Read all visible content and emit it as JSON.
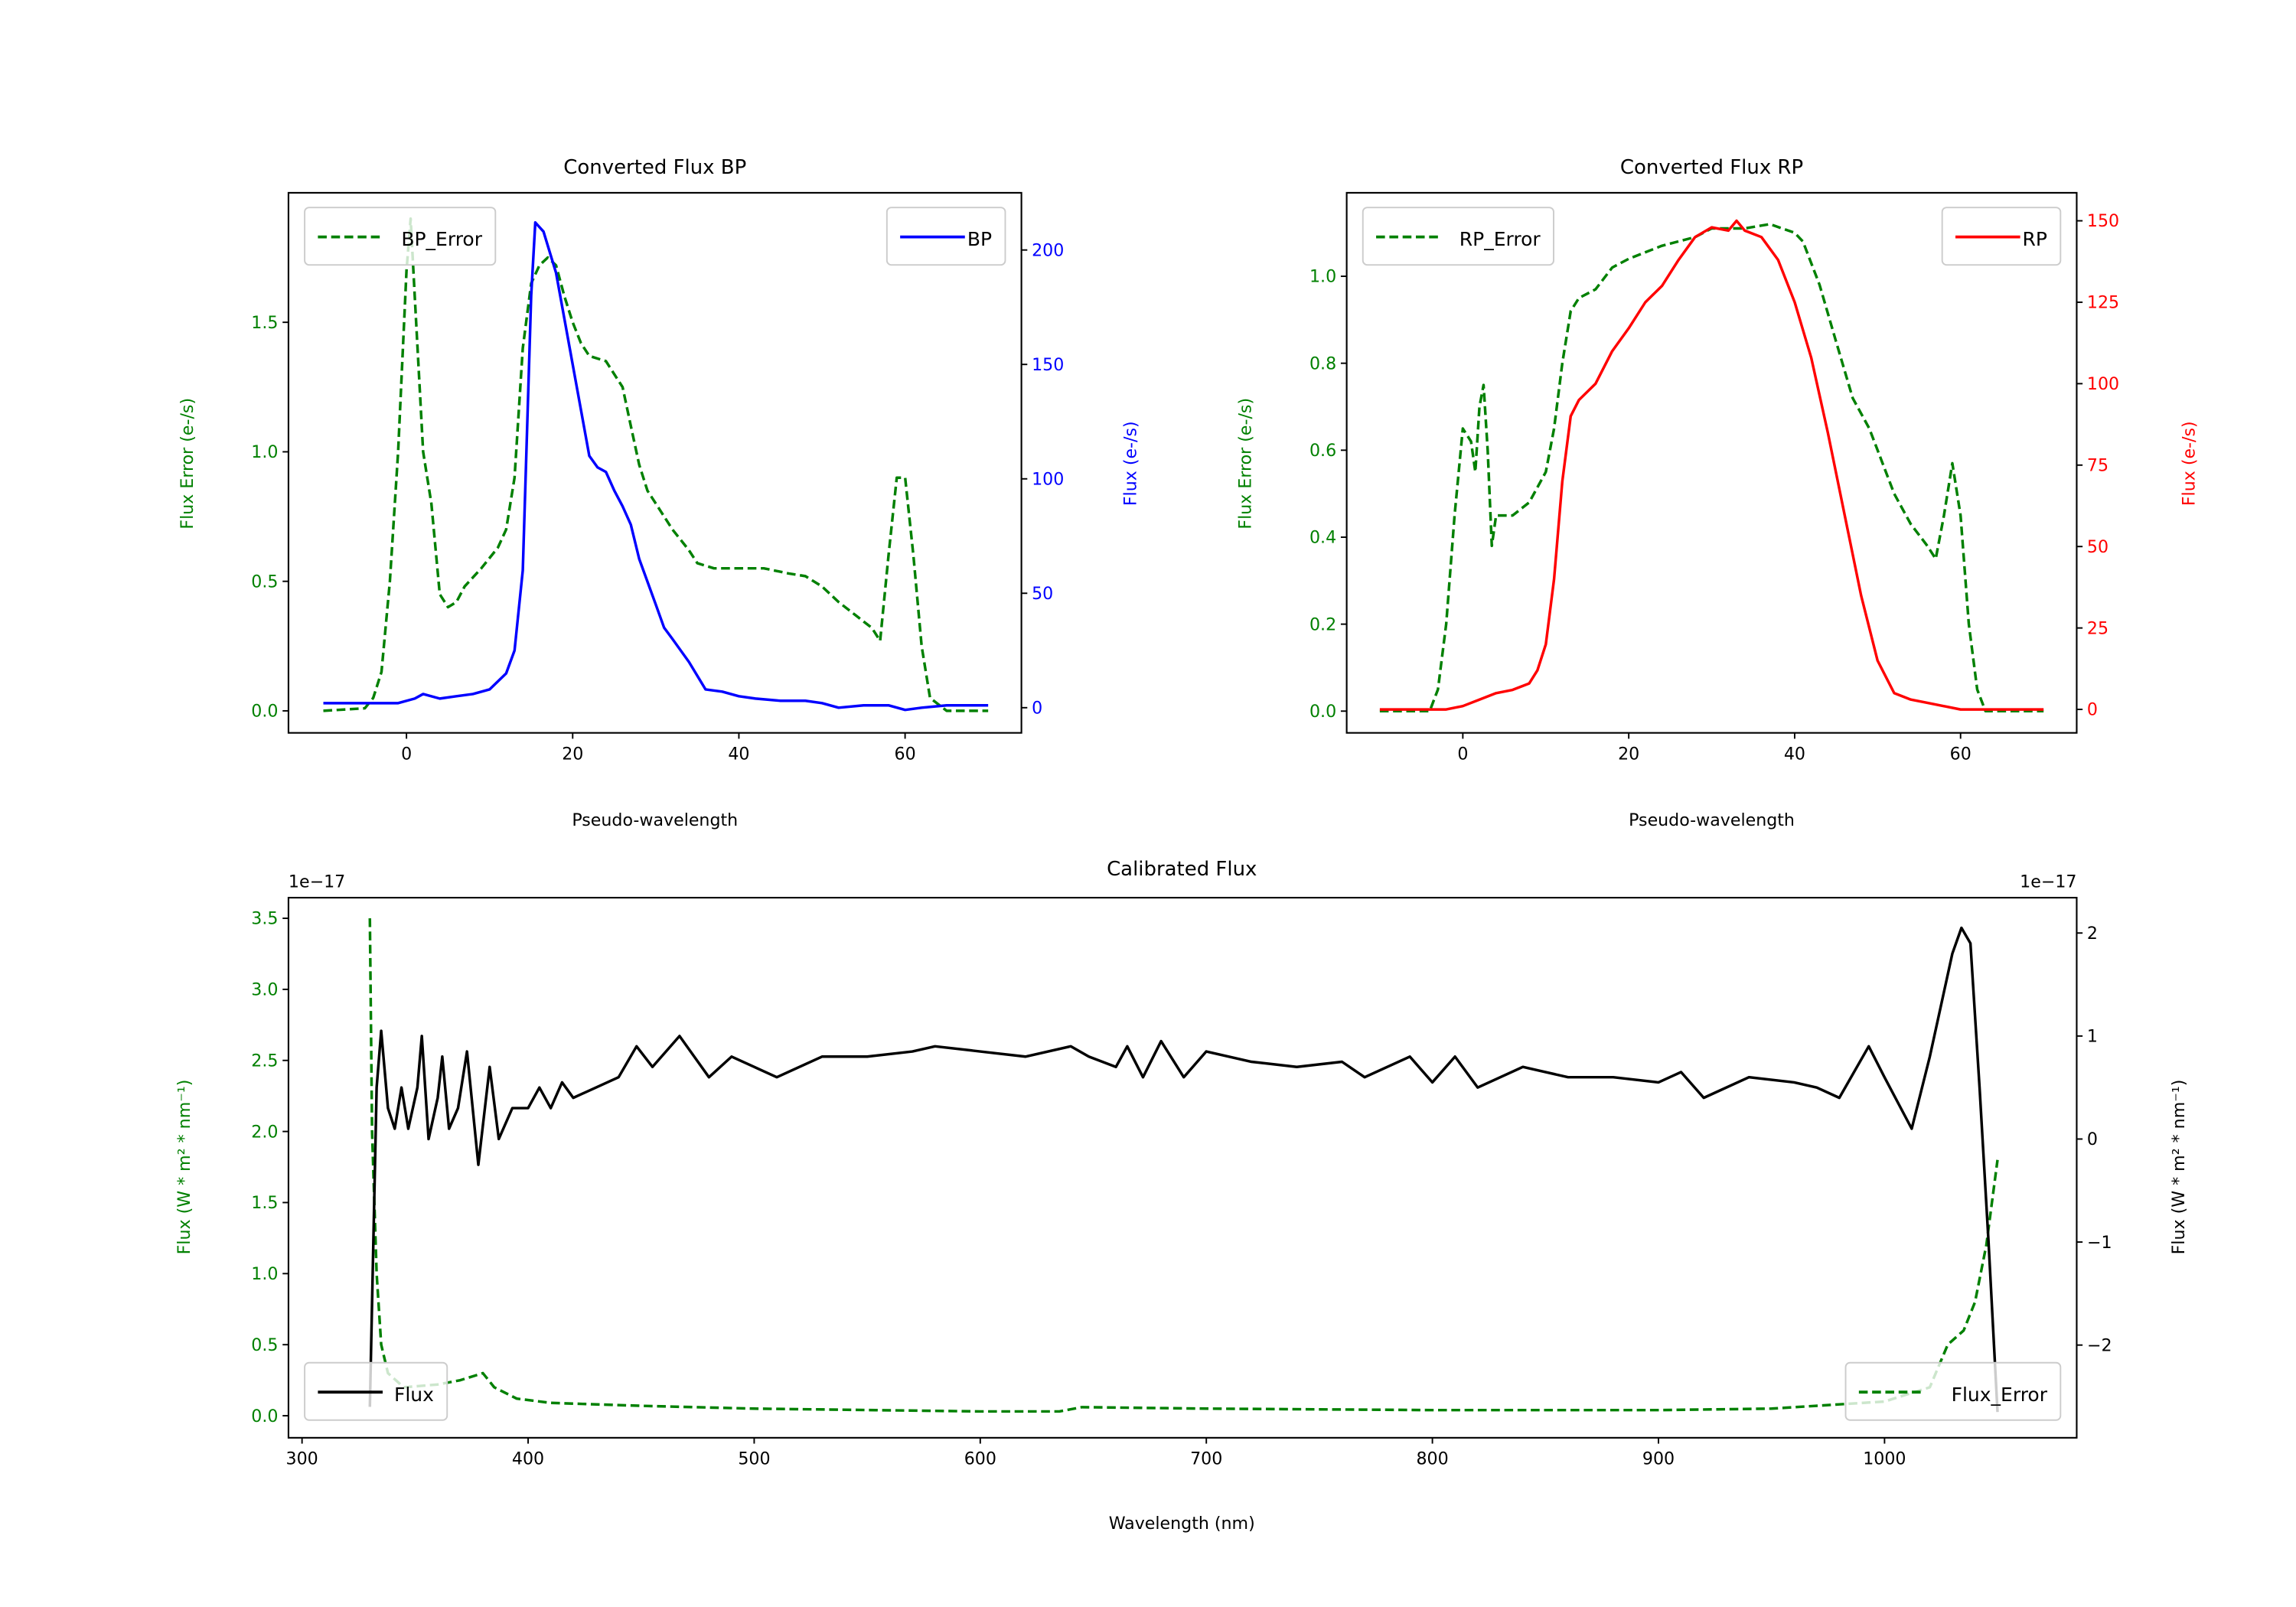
{
  "chart_data": [
    {
      "type": "line",
      "title": "Converted Flux BP",
      "xlabel": "Pseudo-wavelength",
      "ylabel_left": "Flux Error (e-/s)",
      "ylabel_right": "Flux (e-/s)",
      "xlim": [
        -14.2,
        74
      ],
      "ylim_left": [
        -0.085,
        2.0
      ],
      "ylim_right": [
        -11,
        225
      ],
      "xticks": [
        0,
        20,
        40,
        60
      ],
      "yticks_left": [
        0.0,
        0.5,
        1.0,
        1.5
      ],
      "yticks_left_labels": [
        "0.0",
        "0.5",
        "1.0",
        "1.5"
      ],
      "yticks_right": [
        0,
        50,
        100,
        150,
        200
      ],
      "left_color": "#008000",
      "right_color": "#0000ff",
      "legend_left": {
        "label": "BP_Error",
        "placement": "upper-left"
      },
      "legend_right": {
        "label": "BP",
        "placement": "upper-right"
      },
      "series": [
        {
          "name": "BP_Error",
          "axis": "left",
          "style": "dashed",
          "color": "#008000",
          "x": [
            -10,
            -5,
            -4,
            -3,
            -2,
            -1,
            0,
            0.5,
            1,
            2,
            3,
            4,
            5,
            6,
            7,
            9,
            11,
            12,
            13,
            14,
            15,
            16,
            17,
            18,
            19,
            20,
            21,
            22,
            24,
            25,
            26,
            27,
            28,
            29,
            30,
            32,
            34,
            35,
            37,
            40,
            43,
            46,
            48,
            50,
            52,
            54,
            56,
            57,
            58,
            59,
            60,
            61,
            62,
            63,
            65,
            70
          ],
          "y": [
            0,
            0.01,
            0.05,
            0.15,
            0.5,
            1.0,
            1.7,
            1.9,
            1.6,
            1.0,
            0.8,
            0.45,
            0.4,
            0.42,
            0.48,
            0.55,
            0.63,
            0.7,
            0.9,
            1.4,
            1.65,
            1.72,
            1.75,
            1.72,
            1.6,
            1.5,
            1.42,
            1.37,
            1.35,
            1.3,
            1.25,
            1.1,
            0.95,
            0.85,
            0.8,
            0.7,
            0.62,
            0.57,
            0.55,
            0.55,
            0.55,
            0.53,
            0.52,
            0.48,
            0.42,
            0.37,
            0.32,
            0.27,
            0.6,
            0.9,
            0.9,
            0.6,
            0.25,
            0.05,
            0,
            0
          ]
        },
        {
          "name": "BP",
          "axis": "right",
          "style": "solid",
          "color": "#0000ff",
          "x": [
            -10,
            -5,
            -1,
            1,
            2,
            4,
            6,
            8,
            10,
            12,
            13,
            14,
            15,
            15.5,
            16.5,
            18,
            20,
            22,
            23,
            24,
            25,
            26,
            27,
            28,
            30,
            31,
            32,
            34,
            36,
            38,
            40,
            42,
            45,
            48,
            50,
            52,
            55,
            58,
            60,
            62,
            65,
            70
          ],
          "y": [
            2,
            2,
            2,
            4,
            6,
            4,
            5,
            6,
            8,
            15,
            25,
            60,
            180,
            212,
            208,
            190,
            150,
            110,
            105,
            103,
            95,
            88,
            80,
            65,
            45,
            35,
            30,
            20,
            8,
            7,
            5,
            4,
            3,
            3,
            2,
            0,
            1,
            1,
            -1,
            0,
            1,
            1
          ]
        }
      ]
    },
    {
      "type": "line",
      "title": "Converted Flux RP",
      "xlabel": "Pseudo-wavelength",
      "ylabel_left": "Flux Error (e-/s)",
      "ylabel_right": "Flux (e-/s)",
      "xlim": [
        -14,
        74
      ],
      "ylim_left": [
        -0.05,
        1.192
      ],
      "ylim_right": [
        -7.2,
        158.6
      ],
      "xticks": [
        0,
        20,
        40,
        60
      ],
      "yticks_left": [
        0.0,
        0.2,
        0.4,
        0.6,
        0.8,
        1.0
      ],
      "yticks_left_labels": [
        "0.0",
        "0.2",
        "0.4",
        "0.6",
        "0.8",
        "1.0"
      ],
      "yticks_right": [
        0,
        25,
        50,
        75,
        100,
        125,
        150
      ],
      "left_color": "#008000",
      "right_color": "#ff0000",
      "legend_left": {
        "label": "RP_Error",
        "placement": "upper-left"
      },
      "legend_right": {
        "label": "RP",
        "placement": "upper-right"
      },
      "series": [
        {
          "name": "RP_Error",
          "axis": "left",
          "style": "dashed",
          "color": "#008000",
          "x": [
            -10,
            -4,
            -3,
            -2,
            -1,
            0,
            1,
            1.5,
            2,
            2.5,
            3,
            3.5,
            4,
            6,
            8,
            10,
            11,
            12,
            13,
            14,
            16,
            18,
            20,
            24,
            28,
            30,
            34,
            37,
            40,
            41,
            43,
            45,
            47,
            49,
            52,
            54,
            56,
            57,
            58,
            59,
            60,
            61,
            62,
            63,
            70
          ],
          "y": [
            0,
            0,
            0.05,
            0.2,
            0.45,
            0.65,
            0.62,
            0.55,
            0.7,
            0.75,
            0.6,
            0.38,
            0.45,
            0.45,
            0.48,
            0.55,
            0.65,
            0.8,
            0.92,
            0.95,
            0.97,
            1.02,
            1.04,
            1.07,
            1.09,
            1.11,
            1.11,
            1.12,
            1.1,
            1.08,
            0.98,
            0.85,
            0.72,
            0.65,
            0.5,
            0.43,
            0.38,
            0.35,
            0.45,
            0.57,
            0.45,
            0.2,
            0.05,
            0,
            0
          ]
        },
        {
          "name": "RP",
          "axis": "right",
          "style": "solid",
          "color": "#ff0000",
          "x": [
            -10,
            -2,
            0,
            2,
            4,
            6,
            8,
            9,
            10,
            11,
            12,
            13,
            14,
            16,
            18,
            20,
            22,
            24,
            26,
            28,
            30,
            32,
            33,
            34,
            36,
            38,
            40,
            42,
            44,
            46,
            48,
            50,
            52,
            54,
            56,
            60,
            70
          ],
          "y": [
            0,
            0,
            1,
            3,
            5,
            6,
            8,
            12,
            20,
            40,
            70,
            90,
            95,
            100,
            110,
            117,
            125,
            130,
            138,
            145,
            148,
            147,
            150,
            147,
            145,
            138,
            125,
            108,
            85,
            60,
            35,
            15,
            5,
            3,
            2,
            0,
            0
          ]
        }
      ]
    },
    {
      "type": "line",
      "title": "Calibrated Flux",
      "xlabel": "Wavelength (nm)",
      "ylabel_left": "Flux (W * m² * nm⁻¹)",
      "ylabel_right": "Flux (W * m² * nm⁻¹)",
      "offset_left": "1e−17",
      "offset_right": "1e−17",
      "xlim": [
        294,
        1085
      ],
      "ylim_left": [
        -0.155,
        3.645
      ],
      "ylim_right": [
        -2.9,
        2.343
      ],
      "xticks": [
        300,
        400,
        500,
        600,
        700,
        800,
        900,
        1000
      ],
      "yticks_left": [
        0.0,
        0.5,
        1.0,
        1.5,
        2.0,
        2.5,
        3.0,
        3.5
      ],
      "yticks_left_labels": [
        "0.0",
        "0.5",
        "1.0",
        "1.5",
        "2.0",
        "2.5",
        "3.0",
        "3.5"
      ],
      "yticks_right": [
        -2,
        -1,
        0,
        1,
        2
      ],
      "yticks_right_labels": [
        "−2",
        "−1",
        "0",
        "1",
        "2"
      ],
      "left_color": "#008000",
      "right_color": "#000000",
      "legend_left": {
        "label": "Flux",
        "placement": "lower-left"
      },
      "legend_right": {
        "label": "Flux_Error",
        "placement": "lower-right"
      },
      "series": [
        {
          "name": "Flux_Error",
          "axis": "left",
          "style": "dashed",
          "color": "#008000",
          "x": [
            330,
            331,
            333,
            335,
            338,
            345,
            360,
            370,
            380,
            385,
            395,
            410,
            450,
            500,
            600,
            635,
            645,
            700,
            800,
            900,
            950,
            980,
            1000,
            1010,
            1020,
            1028,
            1035,
            1040,
            1045,
            1050
          ],
          "y": [
            3.5,
            2.0,
            1.0,
            0.5,
            0.3,
            0.2,
            0.22,
            0.25,
            0.3,
            0.2,
            0.12,
            0.09,
            0.07,
            0.05,
            0.03,
            0.03,
            0.06,
            0.05,
            0.04,
            0.04,
            0.05,
            0.08,
            0.1,
            0.15,
            0.2,
            0.5,
            0.6,
            0.8,
            1.2,
            1.8
          ]
        },
        {
          "name": "Flux",
          "axis": "right",
          "style": "solid",
          "color": "#000000",
          "x": [
            330,
            333,
            335,
            338,
            341,
            344,
            347,
            351,
            353,
            356,
            360,
            362,
            365,
            369,
            373,
            378,
            383,
            387,
            393,
            400,
            405,
            410,
            415,
            420,
            430,
            440,
            448,
            455,
            467,
            480,
            490,
            500,
            510,
            530,
            550,
            570,
            580,
            600,
            620,
            640,
            648,
            660,
            665,
            672,
            680,
            690,
            700,
            720,
            740,
            760,
            770,
            790,
            800,
            810,
            820,
            840,
            860,
            880,
            900,
            910,
            920,
            940,
            960,
            970,
            980,
            993,
            1000,
            1012,
            1020,
            1030,
            1034,
            1038,
            1042,
            1046,
            1050
          ],
          "y": [
            -2.6,
            0.5,
            1.05,
            0.3,
            0.1,
            0.5,
            0.1,
            0.5,
            1.0,
            0.0,
            0.4,
            0.8,
            0.1,
            0.3,
            0.85,
            -0.25,
            0.7,
            0.0,
            0.3,
            0.3,
            0.5,
            0.3,
            0.55,
            0.4,
            0.5,
            0.6,
            0.9,
            0.7,
            1.0,
            0.6,
            0.8,
            0.7,
            0.6,
            0.8,
            0.8,
            0.85,
            0.9,
            0.85,
            0.8,
            0.9,
            0.8,
            0.7,
            0.9,
            0.6,
            0.95,
            0.6,
            0.85,
            0.75,
            0.7,
            0.75,
            0.6,
            0.8,
            0.55,
            0.8,
            0.5,
            0.7,
            0.6,
            0.6,
            0.55,
            0.65,
            0.4,
            0.6,
            0.55,
            0.5,
            0.4,
            0.9,
            0.6,
            0.1,
            0.8,
            1.8,
            2.05,
            1.9,
            0.5,
            -1.0,
            -2.65
          ]
        }
      ]
    }
  ]
}
